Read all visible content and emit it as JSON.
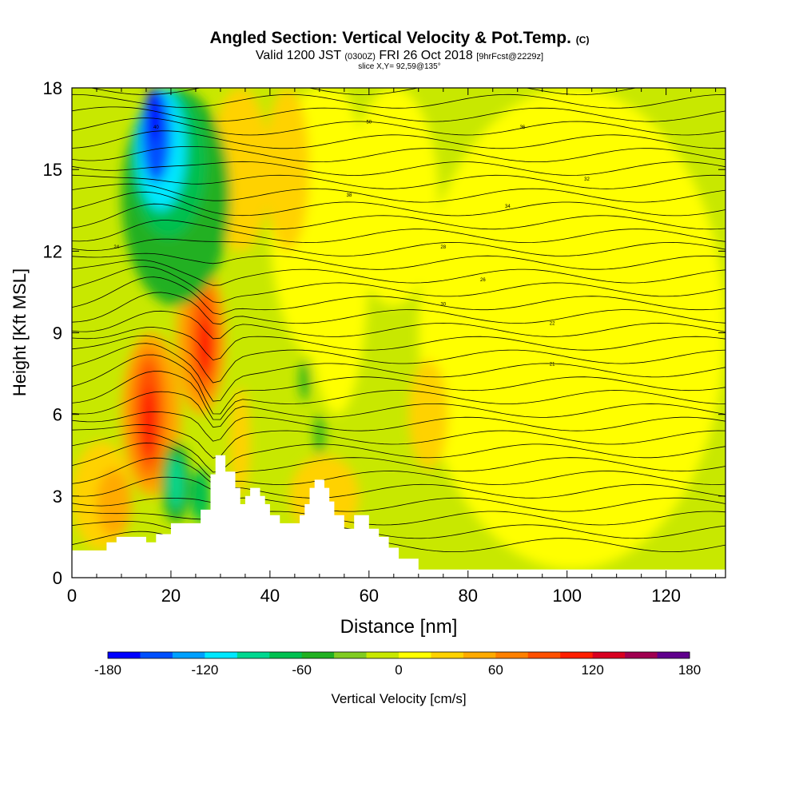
{
  "title": {
    "main": "Angled Section: Vertical Velocity & Pot.Temp.",
    "unit_tag": "(C)"
  },
  "subtitle": {
    "valid": "Valid 1200 JST",
    "utc": "(0300Z)",
    "date": "FRI 26 Oct 2018",
    "forecast": "[9hrFcst@2229z]"
  },
  "slice_label": "slice X,Y= 92,59@135°",
  "chart_data": {
    "type": "heatmap",
    "xlabel": "Distance [nm]",
    "ylabel": "Height [Kft MSL]",
    "xlim": [
      0,
      132
    ],
    "ylim": [
      0,
      18
    ],
    "x_ticks": [
      0,
      20,
      40,
      60,
      80,
      100,
      120
    ],
    "y_ticks": [
      0,
      3,
      6,
      9,
      12,
      15,
      18
    ],
    "colorbar": {
      "label": "Vertical Velocity [cm/s]",
      "range": [
        -180,
        180
      ],
      "step": 20,
      "ticks": [
        -180,
        -120,
        -60,
        0,
        60,
        120,
        180
      ],
      "colors": [
        "#0000ff",
        "#0050ff",
        "#00a0ff",
        "#00e8ff",
        "#00d890",
        "#00c050",
        "#20b020",
        "#80cc20",
        "#c8e800",
        "#ffff00",
        "#ffd200",
        "#ffaa00",
        "#ff8000",
        "#ff5000",
        "#ff1e00",
        "#d80020",
        "#a00050",
        "#60008c"
      ]
    },
    "background_color": "#c8e800",
    "features": [
      {
        "kind": "updraft",
        "value": 100,
        "x": 15,
        "y": 6,
        "note": "strong updraft core"
      },
      {
        "kind": "updraft",
        "value": 100,
        "x": 27,
        "y": 8.5
      },
      {
        "kind": "downdraft",
        "value": -180,
        "x": 17,
        "y": 16.5
      },
      {
        "kind": "weak_ascent",
        "value": 10,
        "x": 50,
        "y": 6
      },
      {
        "kind": "weak_ascent",
        "value": 10,
        "x": 90,
        "y": 5
      }
    ],
    "terrain_kft": [
      [
        0,
        1
      ],
      [
        7,
        1
      ],
      [
        7,
        1.3
      ],
      [
        9,
        1.3
      ],
      [
        9,
        1.5
      ],
      [
        15,
        1.5
      ],
      [
        15,
        1.3
      ],
      [
        17,
        1.3
      ],
      [
        17,
        1.6
      ],
      [
        20,
        1.6
      ],
      [
        20,
        2
      ],
      [
        26,
        2
      ],
      [
        26,
        2.5
      ],
      [
        28,
        2.5
      ],
      [
        28,
        3.8
      ],
      [
        29,
        3.8
      ],
      [
        29,
        4.5
      ],
      [
        31,
        4.5
      ],
      [
        31,
        3.9
      ],
      [
        33,
        3.9
      ],
      [
        33,
        3.3
      ],
      [
        34,
        3.3
      ],
      [
        34,
        2.7
      ],
      [
        35,
        2.7
      ],
      [
        35,
        3.0
      ],
      [
        36,
        3.0
      ],
      [
        36,
        3.3
      ],
      [
        38,
        3.3
      ],
      [
        38,
        3.0
      ],
      [
        39,
        3.0
      ],
      [
        39,
        2.7
      ],
      [
        40,
        2.7
      ],
      [
        40,
        2.3
      ],
      [
        42,
        2.3
      ],
      [
        42,
        2.0
      ],
      [
        46,
        2.0
      ],
      [
        46,
        2.3
      ],
      [
        47,
        2.3
      ],
      [
        47,
        2.7
      ],
      [
        48,
        2.7
      ],
      [
        48,
        3.3
      ],
      [
        49,
        3.3
      ],
      [
        49,
        3.6
      ],
      [
        51,
        3.6
      ],
      [
        51,
        3.3
      ],
      [
        52,
        3.3
      ],
      [
        52,
        2.8
      ],
      [
        53,
        2.8
      ],
      [
        53,
        2.3
      ],
      [
        55,
        2.3
      ],
      [
        55,
        1.8
      ],
      [
        57,
        1.8
      ],
      [
        57,
        2.3
      ],
      [
        60,
        2.3
      ],
      [
        60,
        1.8
      ],
      [
        62,
        1.8
      ],
      [
        62,
        1.5
      ],
      [
        64,
        1.5
      ],
      [
        64,
        1.1
      ],
      [
        66,
        1.1
      ],
      [
        66,
        0.7
      ],
      [
        70,
        0.7
      ],
      [
        70,
        0.3
      ],
      [
        132,
        0.3
      ]
    ],
    "isentropes_C": {
      "lowest": 20,
      "highest": 54,
      "interval": 1
    },
    "isentrope_labels": [
      "40",
      "50",
      "36",
      "32",
      "38",
      "34",
      "24",
      "28",
      "26",
      "30",
      "22",
      "21"
    ]
  }
}
